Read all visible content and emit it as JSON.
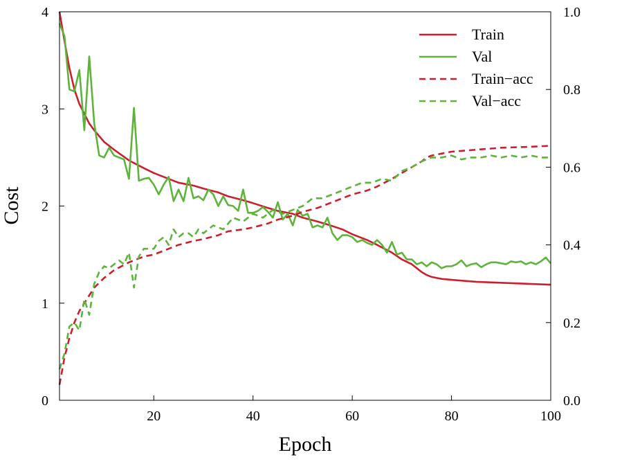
{
  "chart_data": {
    "type": "line",
    "title": "",
    "xlabel": "Epoch",
    "ylabel": "Cost",
    "y2label": "",
    "xlim": [
      1,
      100
    ],
    "ylim": [
      0,
      4
    ],
    "y2lim": [
      0.0,
      1.0
    ],
    "x_ticks": [
      20,
      40,
      60,
      80,
      100
    ],
    "y_ticks": [
      0,
      1,
      2,
      3,
      4
    ],
    "y2_ticks": [
      "0.0",
      "0.2",
      "0.4",
      "0.6",
      "0.8",
      "1.0"
    ],
    "grid": false,
    "legend_position": "top-right",
    "colors": {
      "train": "#cc1f2d",
      "val": "#5db33b"
    },
    "series": [
      {
        "name": "Train",
        "axis": "left",
        "style": "solid",
        "color": "#cc1f2d",
        "x": [
          1,
          2,
          3,
          4,
          5,
          6,
          7,
          8,
          10,
          12,
          15,
          18,
          20,
          22,
          25,
          28,
          30,
          33,
          35,
          38,
          40,
          43,
          45,
          48,
          50,
          53,
          55,
          58,
          60,
          63,
          65,
          68,
          70,
          72,
          74,
          75,
          76,
          78,
          80,
          85,
          90,
          95,
          100
        ],
        "y": [
          4.0,
          3.7,
          3.42,
          3.2,
          3.05,
          2.95,
          2.85,
          2.78,
          2.66,
          2.58,
          2.47,
          2.39,
          2.34,
          2.3,
          2.24,
          2.21,
          2.18,
          2.14,
          2.1,
          2.06,
          2.03,
          1.98,
          1.95,
          1.92,
          1.88,
          1.84,
          1.81,
          1.76,
          1.71,
          1.65,
          1.6,
          1.52,
          1.45,
          1.4,
          1.32,
          1.29,
          1.27,
          1.25,
          1.24,
          1.22,
          1.21,
          1.2,
          1.19
        ]
      },
      {
        "name": "Val",
        "axis": "left",
        "style": "solid",
        "color": "#5db33b",
        "x": [
          1,
          2,
          3,
          4,
          5,
          6,
          7,
          8,
          9,
          10,
          11,
          12,
          13,
          14,
          15,
          16,
          17,
          18,
          19,
          20,
          21,
          22,
          23,
          24,
          25,
          26,
          27,
          28,
          29,
          30,
          31,
          32,
          33,
          34,
          35,
          36,
          37,
          38,
          39,
          40,
          41,
          42,
          43,
          44,
          45,
          46,
          47,
          48,
          49,
          50,
          51,
          52,
          53,
          54,
          55,
          56,
          57,
          58,
          59,
          60,
          61,
          62,
          63,
          64,
          65,
          66,
          67,
          68,
          69,
          70,
          71,
          72,
          73,
          74,
          75,
          76,
          77,
          78,
          79,
          80,
          81,
          82,
          83,
          84,
          85,
          86,
          87,
          88,
          89,
          90,
          91,
          92,
          93,
          94,
          95,
          96,
          97,
          98,
          99,
          100
        ],
        "y": [
          3.88,
          3.75,
          3.2,
          3.18,
          3.4,
          2.78,
          3.54,
          2.85,
          2.52,
          2.5,
          2.6,
          2.52,
          2.5,
          2.48,
          2.28,
          3.01,
          2.26,
          2.28,
          2.29,
          2.22,
          2.12,
          2.22,
          2.3,
          2.05,
          2.17,
          2.05,
          2.29,
          2.08,
          2.1,
          2.06,
          2.17,
          2.12,
          2.0,
          2.1,
          2.01,
          2.0,
          1.95,
          2.17,
          1.93,
          1.93,
          1.95,
          1.99,
          1.94,
          1.88,
          2.04,
          1.86,
          1.92,
          1.8,
          1.96,
          1.9,
          1.92,
          1.78,
          1.8,
          1.78,
          1.88,
          1.72,
          1.65,
          1.7,
          1.7,
          1.68,
          1.63,
          1.65,
          1.62,
          1.6,
          1.65,
          1.6,
          1.52,
          1.63,
          1.5,
          1.52,
          1.45,
          1.45,
          1.4,
          1.42,
          1.38,
          1.42,
          1.4,
          1.36,
          1.38,
          1.38,
          1.4,
          1.44,
          1.38,
          1.4,
          1.41,
          1.37,
          1.4,
          1.42,
          1.42,
          1.41,
          1.4,
          1.43,
          1.42,
          1.43,
          1.4,
          1.42,
          1.4,
          1.43,
          1.47,
          1.41
        ]
      },
      {
        "name": "Train−acc",
        "axis": "right",
        "style": "dashed",
        "color": "#cc1f2d",
        "x": [
          1,
          2,
          3,
          4,
          5,
          6,
          7,
          8,
          10,
          12,
          15,
          18,
          20,
          22,
          25,
          28,
          30,
          33,
          35,
          38,
          40,
          43,
          45,
          48,
          50,
          53,
          55,
          58,
          60,
          63,
          65,
          68,
          70,
          72,
          74,
          75,
          76,
          78,
          80,
          85,
          90,
          95,
          100
        ],
        "y": [
          0.04,
          0.11,
          0.16,
          0.2,
          0.23,
          0.25,
          0.27,
          0.29,
          0.315,
          0.335,
          0.355,
          0.37,
          0.375,
          0.385,
          0.4,
          0.41,
          0.415,
          0.425,
          0.435,
          0.44,
          0.445,
          0.455,
          0.465,
          0.475,
          0.485,
          0.495,
          0.505,
          0.52,
          0.53,
          0.54,
          0.55,
          0.57,
          0.585,
          0.6,
          0.615,
          0.625,
          0.63,
          0.635,
          0.64,
          0.645,
          0.65,
          0.652,
          0.655
        ]
      },
      {
        "name": "Val−acc",
        "axis": "right",
        "style": "dashed",
        "color": "#5db33b",
        "x": [
          1,
          2,
          3,
          4,
          5,
          6,
          7,
          8,
          9,
          10,
          11,
          12,
          13,
          14,
          15,
          16,
          17,
          18,
          19,
          20,
          21,
          22,
          23,
          24,
          25,
          26,
          27,
          28,
          29,
          30,
          32,
          34,
          36,
          38,
          40,
          42,
          44,
          46,
          48,
          50,
          52,
          54,
          56,
          58,
          60,
          62,
          64,
          66,
          68,
          70,
          72,
          74,
          75,
          76,
          78,
          80,
          82,
          84,
          86,
          88,
          90,
          92,
          94,
          96,
          98,
          100
        ],
        "y": [
          0.08,
          0.12,
          0.19,
          0.2,
          0.18,
          0.26,
          0.22,
          0.3,
          0.33,
          0.345,
          0.34,
          0.35,
          0.36,
          0.35,
          0.38,
          0.29,
          0.37,
          0.39,
          0.39,
          0.39,
          0.41,
          0.42,
          0.4,
          0.44,
          0.42,
          0.43,
          0.43,
          0.42,
          0.44,
          0.43,
          0.45,
          0.44,
          0.47,
          0.46,
          0.48,
          0.47,
          0.49,
          0.48,
          0.49,
          0.5,
          0.52,
          0.52,
          0.53,
          0.54,
          0.55,
          0.56,
          0.56,
          0.57,
          0.565,
          0.59,
          0.6,
          0.615,
          0.62,
          0.625,
          0.625,
          0.63,
          0.62,
          0.625,
          0.625,
          0.63,
          0.625,
          0.63,
          0.625,
          0.63,
          0.625,
          0.625
        ]
      }
    ]
  }
}
